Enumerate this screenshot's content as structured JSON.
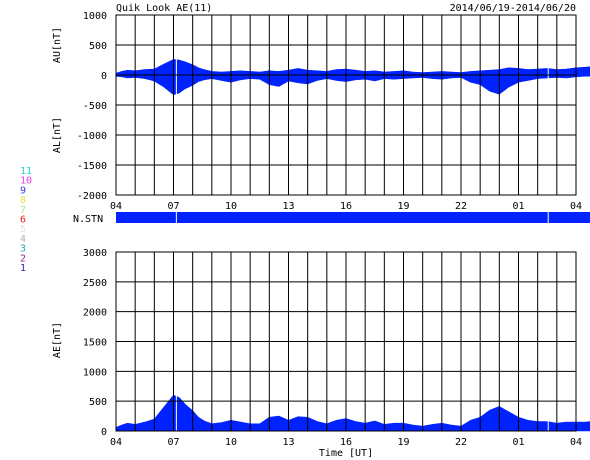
{
  "header": {
    "title": "Quik Look AE(11)",
    "date_range": "2014/06/19-2014/06/20"
  },
  "station_legend": {
    "items": [
      {
        "label": "11",
        "color": "#22d3d3"
      },
      {
        "label": "10",
        "color": "#e83ae8"
      },
      {
        "label": "9",
        "color": "#3a3ae8"
      },
      {
        "label": "8",
        "color": "#e8e050"
      },
      {
        "label": "7",
        "color": "#a0e8a0"
      },
      {
        "label": "6",
        "color": "#e82020"
      },
      {
        "label": "5",
        "color": "#e0e0e0"
      },
      {
        "label": "4",
        "color": "#b0b0b0"
      },
      {
        "label": "3",
        "color": "#2aa8a8"
      },
      {
        "label": "2",
        "color": "#a02aa0"
      },
      {
        "label": "1",
        "color": "#2a2aa8"
      }
    ]
  },
  "colors": {
    "fill": "#0022ff",
    "grid": "#000000",
    "nstn": "#0022ff"
  },
  "chart_data": [
    {
      "type": "area",
      "name": "au-al",
      "ylabel_top": "AU[nT]",
      "ylabel_bottom": "AL[nT]",
      "ylim": [
        -2000,
        1000
      ],
      "yticks": [
        -2000,
        -1500,
        -1000,
        -500,
        0,
        500,
        1000
      ],
      "xticks": [
        "04",
        "07",
        "10",
        "13",
        "16",
        "19",
        "22",
        "01",
        "04"
      ],
      "x_hours": [
        0,
        0.3,
        0.6,
        1.0,
        1.5,
        2.0,
        2.5,
        3.0,
        3.3,
        3.6,
        4.0,
        4.3,
        4.6,
        5.0,
        5.5,
        6.0,
        6.5,
        7.0,
        7.5,
        8.0,
        8.5,
        9.0,
        9.5,
        10.0,
        10.5,
        11.0,
        11.5,
        12.0,
        12.5,
        13.0,
        13.5,
        14.0,
        14.5,
        15.0,
        15.5,
        16.0,
        16.5,
        17.0,
        17.5,
        18.0,
        18.5,
        19.0,
        19.5,
        20.0,
        20.5,
        21.0,
        21.5,
        22.0,
        22.5,
        23.0,
        23.5,
        24.0,
        24.5,
        25.0,
        25.6
      ],
      "au": [
        30,
        60,
        80,
        70,
        90,
        100,
        180,
        260,
        250,
        220,
        170,
        120,
        90,
        60,
        50,
        60,
        70,
        60,
        50,
        70,
        60,
        80,
        110,
        80,
        70,
        60,
        90,
        100,
        80,
        60,
        70,
        50,
        60,
        70,
        50,
        40,
        50,
        60,
        50,
        40,
        60,
        70,
        80,
        90,
        120,
        110,
        90,
        100,
        110,
        90,
        100,
        120,
        130,
        150,
        140
      ],
      "al": [
        -20,
        -30,
        -50,
        -40,
        -60,
        -100,
        -200,
        -330,
        -300,
        -230,
        -170,
        -110,
        -80,
        -60,
        -90,
        -120,
        -80,
        -60,
        -70,
        -160,
        -190,
        -100,
        -130,
        -150,
        -90,
        -60,
        -90,
        -110,
        -80,
        -70,
        -100,
        -60,
        -70,
        -60,
        -50,
        -40,
        -60,
        -70,
        -50,
        -40,
        -120,
        -160,
        -270,
        -320,
        -200,
        -120,
        -90,
        -60,
        -50,
        -40,
        -50,
        -30,
        -20,
        -20,
        -10
      ]
    },
    {
      "type": "area",
      "name": "ae",
      "ylabel": "AE[nT]",
      "xlabel": "Time [UT]",
      "ylim": [
        0,
        3000
      ],
      "yticks": [
        0,
        500,
        1000,
        1500,
        2000,
        2500,
        3000
      ],
      "xticks": [
        "04",
        "07",
        "10",
        "13",
        "16",
        "19",
        "22",
        "01",
        "04"
      ],
      "x_hours": [
        0,
        0.3,
        0.6,
        1.0,
        1.5,
        2.0,
        2.5,
        3.0,
        3.3,
        3.6,
        4.0,
        4.3,
        4.6,
        5.0,
        5.5,
        6.0,
        6.5,
        7.0,
        7.5,
        8.0,
        8.5,
        9.0,
        9.5,
        10.0,
        10.5,
        11.0,
        11.5,
        12.0,
        12.5,
        13.0,
        13.5,
        14.0,
        14.5,
        15.0,
        15.5,
        16.0,
        16.5,
        17.0,
        17.5,
        18.0,
        18.5,
        19.0,
        19.5,
        20.0,
        20.5,
        21.0,
        21.5,
        22.0,
        22.5,
        23.0,
        23.5,
        24.0,
        24.5,
        25.0,
        25.6
      ],
      "values": [
        60,
        100,
        130,
        110,
        150,
        200,
        400,
        600,
        560,
        450,
        340,
        230,
        170,
        120,
        140,
        180,
        150,
        120,
        120,
        230,
        250,
        180,
        240,
        230,
        160,
        120,
        180,
        210,
        160,
        130,
        170,
        110,
        130,
        130,
        100,
        80,
        110,
        130,
        100,
        80,
        180,
        230,
        350,
        410,
        320,
        230,
        180,
        160,
        160,
        130,
        150,
        150,
        150,
        170,
        150
      ]
    }
  ],
  "nstn": {
    "label": "N.STN",
    "gaps_hours": [
      3.15,
      22.55
    ]
  }
}
